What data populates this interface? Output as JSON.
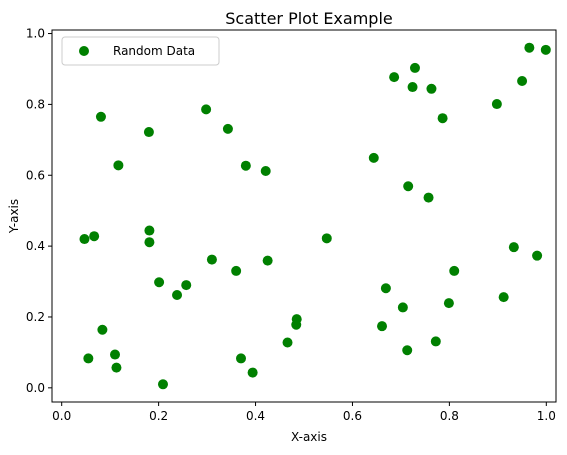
{
  "chart_data": {
    "type": "scatter",
    "title": "Scatter Plot Example",
    "xlabel": "X-axis",
    "ylabel": "Y-axis",
    "xlim": [
      -0.02,
      1.02
    ],
    "ylim": [
      -0.04,
      1.01
    ],
    "x_ticks": [
      0.0,
      0.2,
      0.4,
      0.6,
      0.8,
      1.0
    ],
    "x_tick_labels": [
      "0.0",
      "0.2",
      "0.4",
      "0.6",
      "0.8",
      "1.0"
    ],
    "y_ticks": [
      0.0,
      0.2,
      0.4,
      0.6,
      0.8,
      1.0
    ],
    "y_tick_labels": [
      "0.0",
      "0.2",
      "0.4",
      "0.6",
      "0.8",
      "1.0"
    ],
    "grid": false,
    "legend_position": "top-left",
    "series": [
      {
        "name": "Random Data",
        "color": "#008000",
        "marker": "circle",
        "points": [
          [
            0.047,
            0.42
          ],
          [
            0.055,
            0.083
          ],
          [
            0.067,
            0.428
          ],
          [
            0.081,
            0.765
          ],
          [
            0.084,
            0.164
          ],
          [
            0.11,
            0.094
          ],
          [
            0.113,
            0.057
          ],
          [
            0.117,
            0.628
          ],
          [
            0.18,
            0.722
          ],
          [
            0.181,
            0.444
          ],
          [
            0.181,
            0.411
          ],
          [
            0.201,
            0.298
          ],
          [
            0.209,
            0.01
          ],
          [
            0.238,
            0.262
          ],
          [
            0.257,
            0.29
          ],
          [
            0.298,
            0.786
          ],
          [
            0.31,
            0.362
          ],
          [
            0.343,
            0.731
          ],
          [
            0.36,
            0.33
          ],
          [
            0.37,
            0.083
          ],
          [
            0.38,
            0.627
          ],
          [
            0.394,
            0.043
          ],
          [
            0.421,
            0.612
          ],
          [
            0.425,
            0.359
          ],
          [
            0.466,
            0.128
          ],
          [
            0.484,
            0.178
          ],
          [
            0.485,
            0.194
          ],
          [
            0.547,
            0.422
          ],
          [
            0.644,
            0.649
          ],
          [
            0.661,
            0.174
          ],
          [
            0.669,
            0.281
          ],
          [
            0.686,
            0.877
          ],
          [
            0.704,
            0.227
          ],
          [
            0.713,
            0.106
          ],
          [
            0.715,
            0.569
          ],
          [
            0.724,
            0.849
          ],
          [
            0.729,
            0.903
          ],
          [
            0.757,
            0.537
          ],
          [
            0.763,
            0.844
          ],
          [
            0.772,
            0.131
          ],
          [
            0.786,
            0.761
          ],
          [
            0.799,
            0.239
          ],
          [
            0.81,
            0.33
          ],
          [
            0.898,
            0.801
          ],
          [
            0.912,
            0.256
          ],
          [
            0.933,
            0.397
          ],
          [
            0.95,
            0.866
          ],
          [
            0.965,
            0.96
          ],
          [
            0.981,
            0.373
          ],
          [
            0.999,
            0.954
          ]
        ]
      }
    ]
  }
}
